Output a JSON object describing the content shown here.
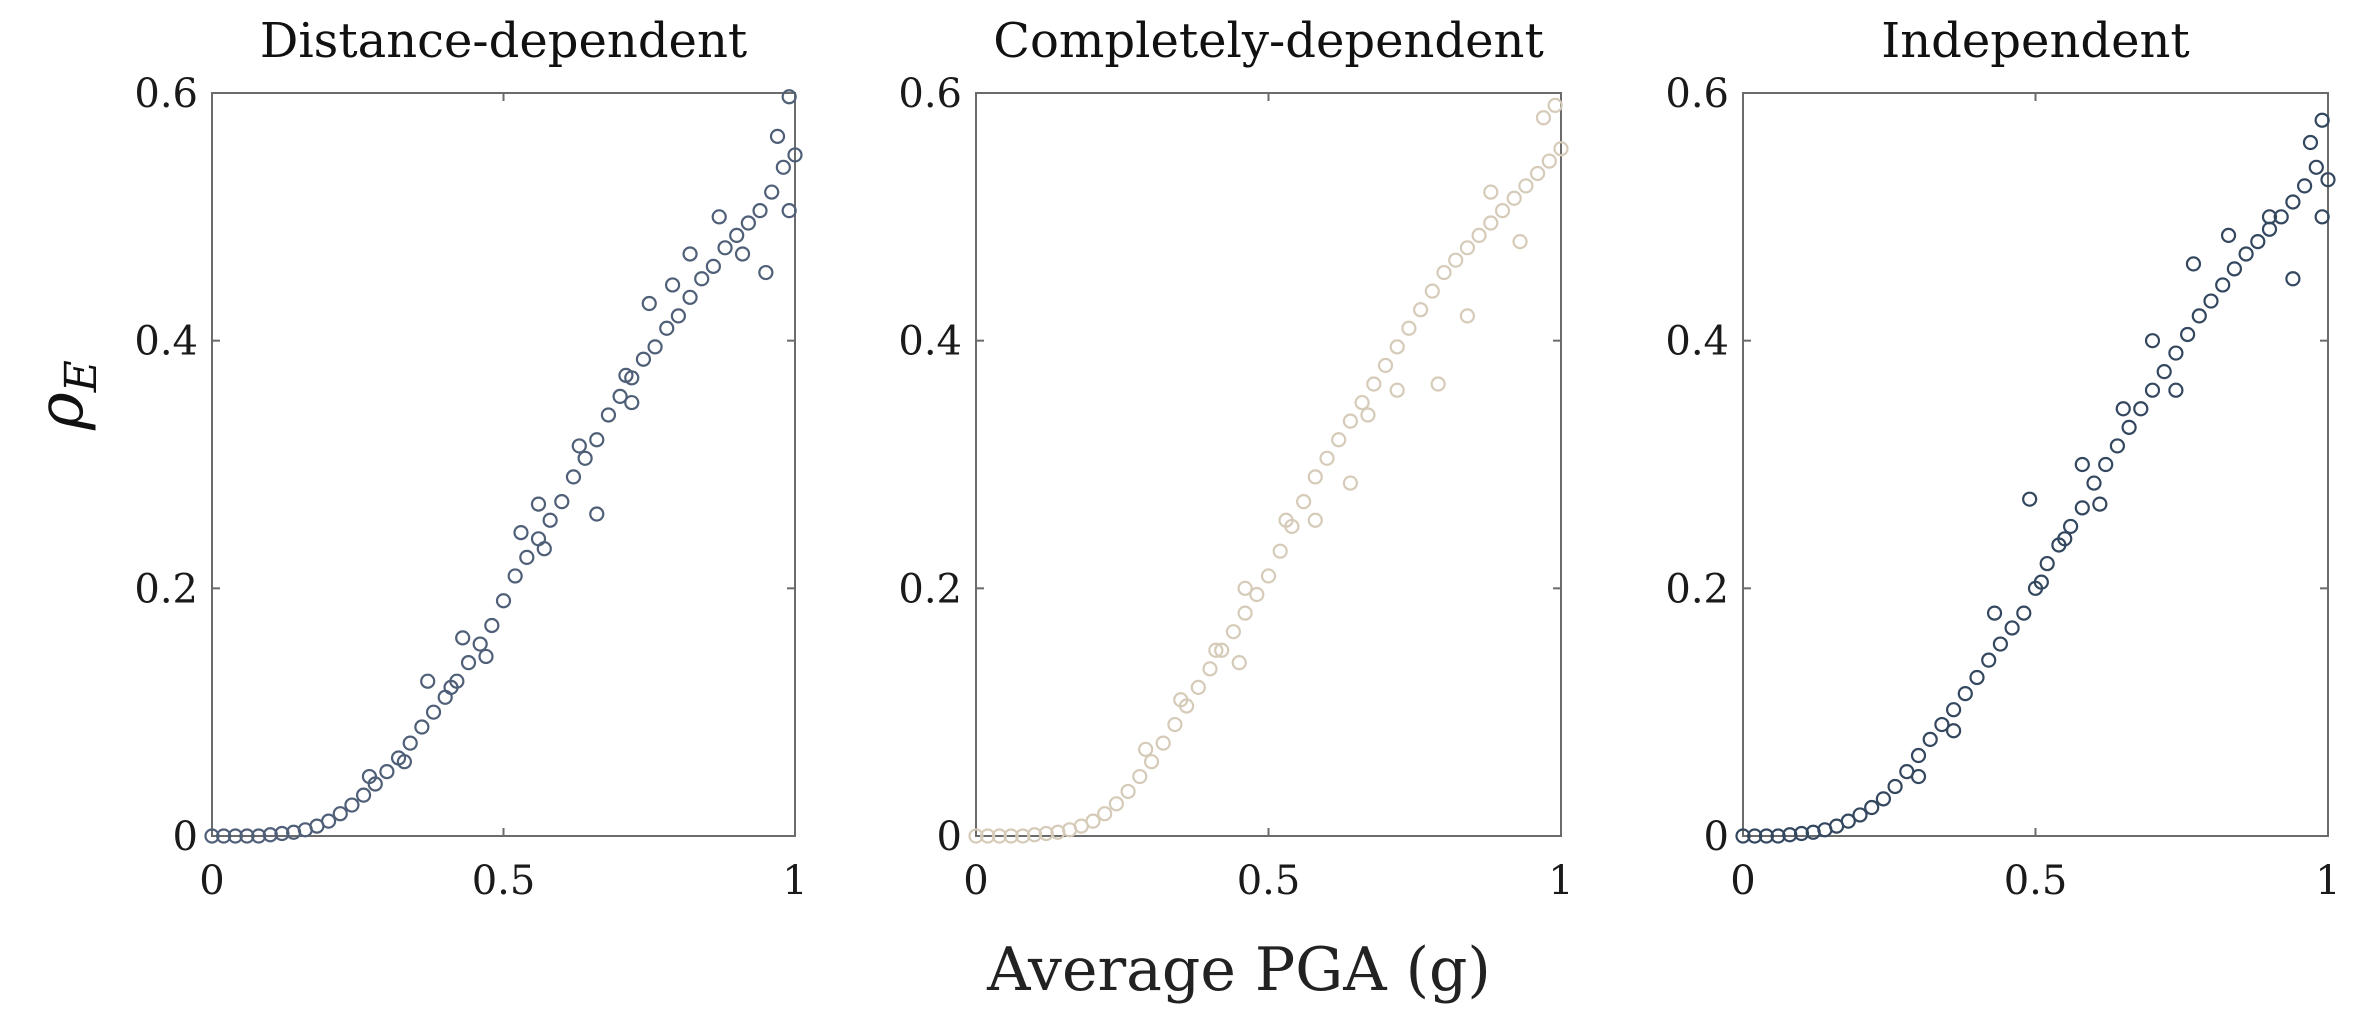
{
  "figure": {
    "xlabel": "Average PGA (g)",
    "ylabel_main": "ρ",
    "ylabel_sub": "E"
  },
  "chart_data": [
    {
      "type": "scatter",
      "title": "Distance-dependent",
      "xlim": [
        0,
        1
      ],
      "ylim": [
        0,
        0.6
      ],
      "xticks": [
        "0",
        "0.5",
        "1"
      ],
      "yticks": [
        "0",
        "0.2",
        "0.4",
        "0.6"
      ],
      "marker": "open-circle",
      "color": "#4f5f78",
      "series": [
        {
          "points": [
            [
              0.0,
              0.0
            ],
            [
              0.02,
              0.0
            ],
            [
              0.04,
              0.0
            ],
            [
              0.06,
              0.0
            ],
            [
              0.08,
              0.0
            ],
            [
              0.1,
              0.001
            ],
            [
              0.12,
              0.002
            ],
            [
              0.14,
              0.003
            ],
            [
              0.16,
              0.005
            ],
            [
              0.18,
              0.008
            ],
            [
              0.2,
              0.012
            ],
            [
              0.22,
              0.018
            ],
            [
              0.24,
              0.025
            ],
            [
              0.26,
              0.033
            ],
            [
              0.28,
              0.042
            ],
            [
              0.3,
              0.052
            ],
            [
              0.32,
              0.063
            ],
            [
              0.34,
              0.075
            ],
            [
              0.36,
              0.088
            ],
            [
              0.38,
              0.1
            ],
            [
              0.4,
              0.112
            ],
            [
              0.42,
              0.125
            ],
            [
              0.44,
              0.14
            ],
            [
              0.46,
              0.155
            ],
            [
              0.48,
              0.17
            ],
            [
              0.5,
              0.19
            ],
            [
              0.52,
              0.21
            ],
            [
              0.54,
              0.225
            ],
            [
              0.56,
              0.24
            ],
            [
              0.58,
              0.255
            ],
            [
              0.6,
              0.27
            ],
            [
              0.62,
              0.29
            ],
            [
              0.64,
              0.305
            ],
            [
              0.66,
              0.32
            ],
            [
              0.68,
              0.34
            ],
            [
              0.7,
              0.355
            ],
            [
              0.72,
              0.37
            ],
            [
              0.74,
              0.385
            ],
            [
              0.76,
              0.395
            ],
            [
              0.78,
              0.41
            ],
            [
              0.8,
              0.42
            ],
            [
              0.82,
              0.435
            ],
            [
              0.84,
              0.45
            ],
            [
              0.86,
              0.46
            ],
            [
              0.88,
              0.475
            ],
            [
              0.9,
              0.485
            ],
            [
              0.92,
              0.495
            ],
            [
              0.94,
              0.505
            ],
            [
              0.96,
              0.52
            ],
            [
              0.98,
              0.54
            ],
            [
              1.0,
              0.55
            ],
            [
              0.37,
              0.125
            ],
            [
              0.43,
              0.16
            ],
            [
              0.47,
              0.145
            ],
            [
              0.53,
              0.245
            ],
            [
              0.57,
              0.232
            ],
            [
              0.63,
              0.315
            ],
            [
              0.66,
              0.26
            ],
            [
              0.71,
              0.372
            ],
            [
              0.75,
              0.43
            ],
            [
              0.82,
              0.47
            ],
            [
              0.87,
              0.5
            ],
            [
              0.95,
              0.455
            ],
            [
              0.97,
              0.565
            ],
            [
              0.99,
              0.597
            ],
            [
              0.99,
              0.505
            ],
            [
              0.72,
              0.35
            ],
            [
              0.56,
              0.268
            ],
            [
              0.41,
              0.12
            ],
            [
              0.33,
              0.06
            ],
            [
              0.27,
              0.048
            ],
            [
              0.91,
              0.47
            ],
            [
              0.79,
              0.445
            ]
          ]
        }
      ]
    },
    {
      "type": "scatter",
      "title": "Completely-dependent",
      "xlim": [
        0,
        1
      ],
      "ylim": [
        0,
        0.6
      ],
      "xticks": [
        "0",
        "0.5",
        "1"
      ],
      "yticks": [
        "0",
        "0.2",
        "0.4",
        "0.6"
      ],
      "marker": "open-circle",
      "color": "#d5cbb8",
      "series": [
        {
          "points": [
            [
              0.0,
              0.0
            ],
            [
              0.02,
              0.0
            ],
            [
              0.04,
              0.0
            ],
            [
              0.06,
              0.0
            ],
            [
              0.08,
              0.0
            ],
            [
              0.1,
              0.001
            ],
            [
              0.12,
              0.002
            ],
            [
              0.14,
              0.003
            ],
            [
              0.16,
              0.005
            ],
            [
              0.18,
              0.008
            ],
            [
              0.2,
              0.012
            ],
            [
              0.22,
              0.018
            ],
            [
              0.24,
              0.026
            ],
            [
              0.26,
              0.036
            ],
            [
              0.28,
              0.048
            ],
            [
              0.3,
              0.06
            ],
            [
              0.32,
              0.075
            ],
            [
              0.34,
              0.09
            ],
            [
              0.36,
              0.105
            ],
            [
              0.38,
              0.12
            ],
            [
              0.4,
              0.135
            ],
            [
              0.42,
              0.15
            ],
            [
              0.44,
              0.165
            ],
            [
              0.46,
              0.18
            ],
            [
              0.48,
              0.195
            ],
            [
              0.5,
              0.21
            ],
            [
              0.52,
              0.23
            ],
            [
              0.54,
              0.25
            ],
            [
              0.56,
              0.27
            ],
            [
              0.58,
              0.29
            ],
            [
              0.6,
              0.305
            ],
            [
              0.62,
              0.32
            ],
            [
              0.64,
              0.335
            ],
            [
              0.66,
              0.35
            ],
            [
              0.68,
              0.365
            ],
            [
              0.7,
              0.38
            ],
            [
              0.72,
              0.395
            ],
            [
              0.74,
              0.41
            ],
            [
              0.76,
              0.425
            ],
            [
              0.78,
              0.44
            ],
            [
              0.8,
              0.455
            ],
            [
              0.82,
              0.465
            ],
            [
              0.84,
              0.475
            ],
            [
              0.86,
              0.485
            ],
            [
              0.88,
              0.495
            ],
            [
              0.9,
              0.505
            ],
            [
              0.92,
              0.515
            ],
            [
              0.94,
              0.525
            ],
            [
              0.96,
              0.535
            ],
            [
              0.98,
              0.545
            ],
            [
              1.0,
              0.555
            ],
            [
              0.35,
              0.11
            ],
            [
              0.41,
              0.15
            ],
            [
              0.45,
              0.14
            ],
            [
              0.53,
              0.255
            ],
            [
              0.58,
              0.255
            ],
            [
              0.64,
              0.285
            ],
            [
              0.67,
              0.34
            ],
            [
              0.72,
              0.36
            ],
            [
              0.79,
              0.365
            ],
            [
              0.84,
              0.42
            ],
            [
              0.88,
              0.52
            ],
            [
              0.93,
              0.48
            ],
            [
              0.97,
              0.58
            ],
            [
              0.99,
              0.59
            ],
            [
              0.46,
              0.2
            ],
            [
              0.29,
              0.07
            ]
          ]
        }
      ]
    },
    {
      "type": "scatter",
      "title": "Independent",
      "xlim": [
        0,
        1
      ],
      "ylim": [
        0,
        0.6
      ],
      "xticks": [
        "0",
        "0.5",
        "1"
      ],
      "yticks": [
        "0",
        "0.2",
        "0.4",
        "0.6"
      ],
      "marker": "open-circle",
      "color": "#33475f",
      "series": [
        {
          "points": [
            [
              0.0,
              0.0
            ],
            [
              0.02,
              0.0
            ],
            [
              0.04,
              0.0
            ],
            [
              0.06,
              0.0
            ],
            [
              0.08,
              0.001
            ],
            [
              0.1,
              0.002
            ],
            [
              0.12,
              0.003
            ],
            [
              0.14,
              0.005
            ],
            [
              0.16,
              0.008
            ],
            [
              0.18,
              0.012
            ],
            [
              0.2,
              0.017
            ],
            [
              0.22,
              0.023
            ],
            [
              0.24,
              0.03
            ],
            [
              0.26,
              0.04
            ],
            [
              0.28,
              0.052
            ],
            [
              0.3,
              0.065
            ],
            [
              0.32,
              0.078
            ],
            [
              0.34,
              0.09
            ],
            [
              0.36,
              0.102
            ],
            [
              0.38,
              0.115
            ],
            [
              0.4,
              0.128
            ],
            [
              0.42,
              0.142
            ],
            [
              0.44,
              0.155
            ],
            [
              0.46,
              0.168
            ],
            [
              0.48,
              0.18
            ],
            [
              0.5,
              0.2
            ],
            [
              0.52,
              0.22
            ],
            [
              0.54,
              0.235
            ],
            [
              0.56,
              0.25
            ],
            [
              0.58,
              0.265
            ],
            [
              0.6,
              0.285
            ],
            [
              0.62,
              0.3
            ],
            [
              0.64,
              0.315
            ],
            [
              0.66,
              0.33
            ],
            [
              0.68,
              0.345
            ],
            [
              0.7,
              0.36
            ],
            [
              0.72,
              0.375
            ],
            [
              0.74,
              0.39
            ],
            [
              0.76,
              0.405
            ],
            [
              0.78,
              0.42
            ],
            [
              0.8,
              0.432
            ],
            [
              0.82,
              0.445
            ],
            [
              0.84,
              0.458
            ],
            [
              0.86,
              0.47
            ],
            [
              0.88,
              0.48
            ],
            [
              0.9,
              0.49
            ],
            [
              0.92,
              0.5
            ],
            [
              0.94,
              0.512
            ],
            [
              0.96,
              0.525
            ],
            [
              0.98,
              0.54
            ],
            [
              1.0,
              0.53
            ],
            [
              0.43,
              0.18
            ],
            [
              0.49,
              0.272
            ],
            [
              0.51,
              0.205
            ],
            [
              0.55,
              0.24
            ],
            [
              0.61,
              0.268
            ],
            [
              0.65,
              0.345
            ],
            [
              0.7,
              0.4
            ],
            [
              0.77,
              0.462
            ],
            [
              0.83,
              0.485
            ],
            [
              0.9,
              0.5
            ],
            [
              0.94,
              0.45
            ],
            [
              0.97,
              0.56
            ],
            [
              0.99,
              0.578
            ],
            [
              0.99,
              0.5
            ],
            [
              0.36,
              0.085
            ],
            [
              0.3,
              0.048
            ],
            [
              0.58,
              0.3
            ],
            [
              0.74,
              0.36
            ]
          ]
        }
      ]
    }
  ]
}
